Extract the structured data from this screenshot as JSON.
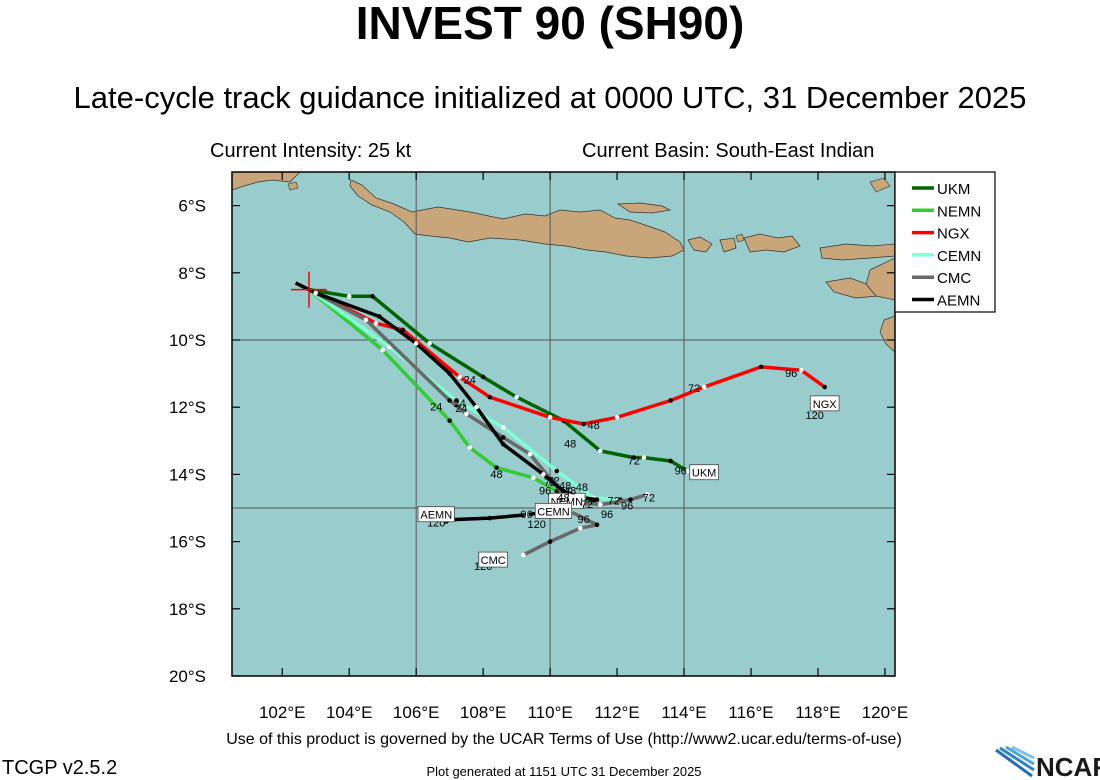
{
  "header": {
    "title": "INVEST 90 (SH90)",
    "subtitle": "Late-cycle track guidance initialized at 0000 UTC, 31 December 2025",
    "intensity": "Current Intensity: 25 kt",
    "basin": "Current Basin: South-East Indian"
  },
  "map": {
    "lon_range": [
      100.5,
      120.3
    ],
    "lat_range": [
      -20.0,
      -5.0
    ],
    "x_ticks": [
      "102°E",
      "104°E",
      "106°E",
      "108°E",
      "110°E",
      "112°E",
      "114°E",
      "116°E",
      "118°E",
      "120°E"
    ],
    "y_ticks": [
      "6°S",
      "8°S",
      "10°S",
      "12°S",
      "14°S",
      "16°S",
      "18°S",
      "20°S"
    ],
    "ocean_color": "#99cccc",
    "land_color": "#c8a67a",
    "current_position": {
      "lon": 102.8,
      "lat": -8.5,
      "color": "#ff0000"
    }
  },
  "legend": {
    "items": [
      {
        "name": "UKM",
        "color": "#006400"
      },
      {
        "name": "NEMN",
        "color": "#32cd32"
      },
      {
        "name": "NGX",
        "color": "#ff0000"
      },
      {
        "name": "CEMN",
        "color": "#7fffd4"
      },
      {
        "name": "CMC",
        "color": "#696969"
      },
      {
        "name": "AEMN",
        "color": "#000000"
      }
    ]
  },
  "tracks": [
    {
      "name": "UKM",
      "color": "#006400",
      "points": [
        [
          102.8,
          -8.5
        ],
        [
          104.0,
          -8.7
        ],
        [
          104.7,
          -8.7
        ],
        [
          106.4,
          -10.1
        ],
        [
          108.0,
          -11.1
        ],
        [
          109.0,
          -11.7
        ],
        [
          110.4,
          -12.4
        ],
        [
          111.5,
          -13.3
        ],
        [
          112.5,
          -13.5
        ],
        [
          112.8,
          -13.5
        ],
        [
          113.6,
          -13.6
        ],
        [
          114.1,
          -13.9
        ]
      ],
      "labels": [
        {
          "text": "24",
          "lon": 107.6,
          "lat": -11.3
        },
        {
          "text": "48",
          "lon": 110.6,
          "lat": -13.2
        },
        {
          "text": "72",
          "lon": 112.5,
          "lat": -13.7
        },
        {
          "text": "96",
          "lon": 113.9,
          "lat": -14.0
        }
      ],
      "end_label": {
        "text": "UKM",
        "lon": 114.6,
        "lat": -13.95
      }
    },
    {
      "name": "NEMN",
      "color": "#32cd32",
      "points": [
        [
          102.8,
          -8.5
        ],
        [
          105.0,
          -10.3
        ],
        [
          107.0,
          -12.4
        ],
        [
          107.6,
          -13.2
        ],
        [
          108.4,
          -13.8
        ],
        [
          109.5,
          -14.1
        ],
        [
          110.2,
          -14.5
        ],
        [
          111.0,
          -14.8
        ],
        [
          111.3,
          -14.8
        ]
      ],
      "labels": [
        {
          "text": "24",
          "lon": 106.6,
          "lat": -12.1
        },
        {
          "text": "48",
          "lon": 108.4,
          "lat": -14.1
        },
        {
          "text": "72",
          "lon": 110.0,
          "lat": -14.35
        }
      ],
      "end_label": {
        "text": "NEMN",
        "lon": 110.5,
        "lat": -14.8
      }
    },
    {
      "name": "NGX",
      "color": "#ff0000",
      "points": [
        [
          102.8,
          -8.5
        ],
        [
          104.8,
          -9.5
        ],
        [
          105.6,
          -9.7
        ],
        [
          107.3,
          -11.1
        ],
        [
          108.2,
          -11.7
        ],
        [
          110.0,
          -12.3
        ],
        [
          111.0,
          -12.5
        ],
        [
          112.0,
          -12.3
        ],
        [
          113.6,
          -11.8
        ],
        [
          114.6,
          -11.4
        ],
        [
          116.3,
          -10.8
        ],
        [
          117.5,
          -10.9
        ],
        [
          118.2,
          -11.4
        ]
      ],
      "labels": [
        {
          "text": "48",
          "lon": 111.3,
          "lat": -12.65
        },
        {
          "text": "72",
          "lon": 114.3,
          "lat": -11.55
        },
        {
          "text": "96",
          "lon": 117.2,
          "lat": -11.1
        },
        {
          "text": "120",
          "lon": 117.9,
          "lat": -12.35
        }
      ],
      "end_label": {
        "text": "NGX",
        "lon": 118.2,
        "lat": -11.9
      }
    },
    {
      "name": "CEMN",
      "color": "#7fffd4",
      "points": [
        [
          102.8,
          -8.5
        ],
        [
          105.2,
          -10.2
        ],
        [
          107.2,
          -11.8
        ],
        [
          108.6,
          -12.6
        ],
        [
          110.2,
          -13.9
        ],
        [
          111.3,
          -14.7
        ],
        [
          112.1,
          -14.75
        ]
      ],
      "labels": [
        {
          "text": "24",
          "lon": 107.3,
          "lat": -12.0
        }
      ],
      "end_label": {
        "text": "CEMN",
        "lon": 110.1,
        "lat": -15.1
      }
    },
    {
      "name": "CMC",
      "color": "#696969",
      "points": [
        [
          102.8,
          -8.5
        ],
        [
          104.5,
          -9.4
        ],
        [
          107.0,
          -11.8
        ],
        [
          107.5,
          -12.2
        ],
        [
          108.6,
          -12.9
        ],
        [
          109.4,
          -13.4
        ],
        [
          110.4,
          -14.6
        ],
        [
          110.6,
          -15.1
        ],
        [
          111.4,
          -15.5
        ],
        [
          110.9,
          -15.6
        ],
        [
          110.0,
          -16.0
        ],
        [
          109.2,
          -16.4
        ]
      ],
      "labels": [
        {
          "text": "24",
          "lon": 107.35,
          "lat": -12.15
        },
        {
          "text": "48",
          "lon": 110.6,
          "lat": -14.6
        },
        {
          "text": "96",
          "lon": 111.0,
          "lat": -15.45
        },
        {
          "text": "120",
          "lon": 108.0,
          "lat": -16.85
        }
      ],
      "end_label": {
        "text": "CMC",
        "lon": 108.3,
        "lat": -16.55
      }
    },
    {
      "name": "AEMN",
      "color": "#000000",
      "points": [
        [
          102.4,
          -8.3
        ],
        [
          103.0,
          -8.6
        ],
        [
          104.9,
          -9.3
        ],
        [
          106.0,
          -10.1
        ],
        [
          107.0,
          -11.0
        ],
        [
          107.8,
          -12.0
        ],
        [
          108.6,
          -13.1
        ],
        [
          109.8,
          -14.0
        ],
        [
          110.4,
          -14.5
        ],
        [
          111.0,
          -14.7
        ],
        [
          111.4,
          -14.75
        ],
        [
          111.0,
          -14.9
        ],
        [
          110.0,
          -15.1
        ],
        [
          109.3,
          -15.2
        ],
        [
          108.2,
          -15.3
        ],
        [
          107.0,
          -15.35
        ],
        [
          106.9,
          -15.4
        ]
      ],
      "labels": [
        {
          "text": "96",
          "lon": 109.3,
          "lat": -15.3
        },
        {
          "text": "120",
          "lon": 106.6,
          "lat": -15.55
        }
      ],
      "end_label": {
        "text": "AEMN",
        "lon": 106.6,
        "lat": -15.2
      }
    },
    {
      "name": "MIX",
      "color": "#696969",
      "points": [
        [
          110.6,
          -14.8
        ],
        [
          111.5,
          -14.9
        ],
        [
          112.4,
          -14.75
        ],
        [
          112.9,
          -14.6
        ]
      ],
      "labels": [
        {
          "text": "96",
          "lon": 111.7,
          "lat": -15.3
        },
        {
          "text": "96",
          "lon": 112.3,
          "lat": -15.05
        },
        {
          "text": "72",
          "lon": 112.95,
          "lat": -14.8
        },
        {
          "text": "72",
          "lon": 111.9,
          "lat": -14.9
        }
      ],
      "end_label": null
    }
  ],
  "cluster_labels": [
    {
      "text": "72",
      "lon": 110.1,
      "lat": -14.3
    },
    {
      "text": "48",
      "lon": 110.45,
      "lat": -14.45
    },
    {
      "text": "48",
      "lon": 110.95,
      "lat": -14.5
    },
    {
      "text": "96",
      "lon": 109.85,
      "lat": -14.6
    },
    {
      "text": "48",
      "lon": 110.4,
      "lat": -14.8
    },
    {
      "text": "72",
      "lon": 111.1,
      "lat": -15.0
    },
    {
      "text": "120",
      "lon": 109.6,
      "lat": -15.6
    }
  ],
  "footer": {
    "terms": "Use of this product is governed by the UCAR Terms of Use (http://www2.ucar.edu/terms-of-use)",
    "version": "TCGP v2.5.2",
    "generated": "Plot generated at 1151 UTC   31 December 2025",
    "logo_text": "NCAR"
  }
}
